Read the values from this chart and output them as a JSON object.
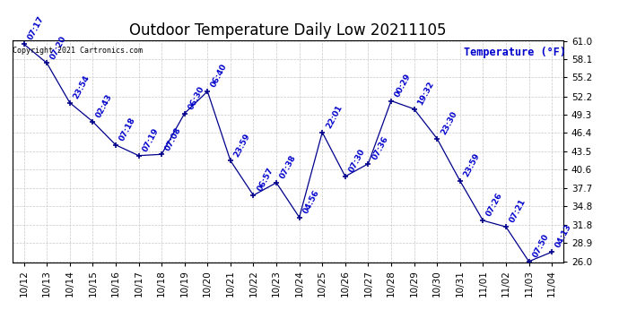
{
  "title": "Outdoor Temperature Daily Low 20211105",
  "ylabel": "Temperature (°F)",
  "copyright": "Copyright 2021 Cartronics.com",
  "background_color": "#ffffff",
  "line_color": "#00008b",
  "point_color": "#00008b",
  "label_color": "#0000cc",
  "grid_color": "#c8c8c8",
  "dates": [
    "10/12",
    "10/13",
    "10/14",
    "10/15",
    "10/16",
    "10/17",
    "10/18",
    "10/19",
    "10/20",
    "10/21",
    "10/22",
    "10/23",
    "10/24",
    "10/25",
    "10/26",
    "10/27",
    "10/28",
    "10/29",
    "10/30",
    "10/31",
    "11/01",
    "11/02",
    "11/03",
    "11/04"
  ],
  "values": [
    60.5,
    57.5,
    51.2,
    48.2,
    44.5,
    42.8,
    43.0,
    49.5,
    53.0,
    42.0,
    36.5,
    38.5,
    33.0,
    46.5,
    39.5,
    41.5,
    51.5,
    50.2,
    45.5,
    38.8,
    32.5,
    31.5,
    26.0,
    27.5
  ],
  "times": [
    "07:17",
    "07:20",
    "23:54",
    "02:43",
    "07:18",
    "07:19",
    "07:08",
    "06:30",
    "06:40",
    "23:59",
    "06:57",
    "07:38",
    "04:56",
    "22:01",
    "07:30",
    "07:36",
    "00:29",
    "19:32",
    "23:30",
    "23:59",
    "07:26",
    "07:21",
    "07:50",
    "04:13"
  ],
  "ylim_min": 26.0,
  "ylim_max": 61.0,
  "yticks": [
    26.0,
    28.9,
    31.8,
    34.8,
    37.7,
    40.6,
    43.5,
    46.4,
    49.3,
    52.2,
    55.2,
    58.1,
    61.0
  ],
  "title_fontsize": 12,
  "label_fontsize": 6.5,
  "axis_fontsize": 7.5,
  "ylabel_fontsize": 8.5
}
